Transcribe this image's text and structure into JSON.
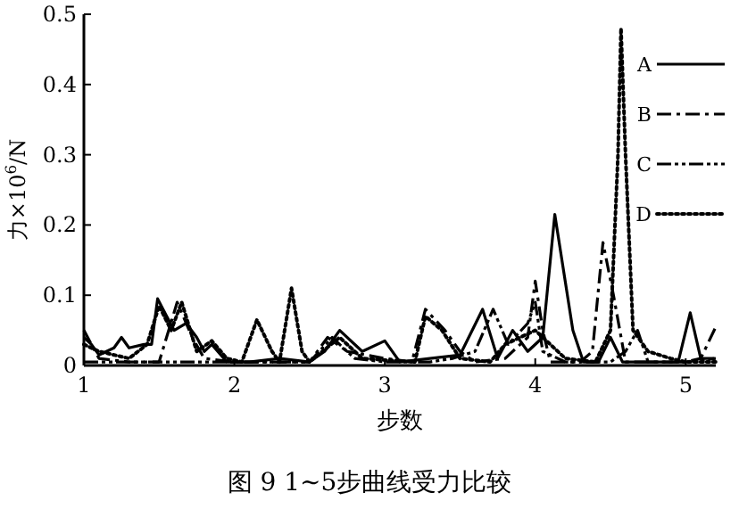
{
  "chart_data": {
    "type": "line",
    "title": "图 9  1~5步曲线受力比较",
    "xlabel": "步数",
    "ylabel": "力×10$^{6}$/N",
    "xlim": [
      1,
      5.2
    ],
    "ylim": [
      0,
      0.5
    ],
    "xticks": [
      1,
      2,
      3,
      4,
      5
    ],
    "yticks": [
      0,
      0.1,
      0.2,
      0.3,
      0.4,
      0.5
    ],
    "legend": "top right",
    "series": [
      {
        "name": "A",
        "color": "#000000",
        "line_style": "solid",
        "x": [
          1,
          1.05,
          1.1,
          1.2,
          1.25,
          1.3,
          1.4,
          1.45,
          1.49,
          1.55,
          1.6,
          1.68,
          1.75,
          1.8,
          1.85,
          1.95,
          2.1,
          2.3,
          2.5,
          2.6,
          2.7,
          2.85,
          3.0,
          3.1,
          3.3,
          3.5,
          3.65,
          3.75,
          3.85,
          3.95,
          4.05,
          4.13,
          4.25,
          4.32,
          4.42,
          4.5,
          4.58,
          4.8,
          4.95,
          5.03,
          5.1,
          5.19
        ],
        "values": [
          0.04,
          0.03,
          0.015,
          0.025,
          0.04,
          0.025,
          0.03,
          0.03,
          0.095,
          0.07,
          0.05,
          0.06,
          0.04,
          0.02,
          0.03,
          0.005,
          0.005,
          0.01,
          0.005,
          0.02,
          0.05,
          0.02,
          0.035,
          0.005,
          0.01,
          0.015,
          0.08,
          0.01,
          0.05,
          0.02,
          0.04,
          0.215,
          0.05,
          0.005,
          0.005,
          0.04,
          0.005,
          0.005,
          0.005,
          0.075,
          0.01,
          0.01
        ]
      },
      {
        "name": "B",
        "color": "#000000",
        "line_style": "dashdot",
        "x": [
          1,
          1.1,
          1.3,
          1.5,
          1.62,
          1.72,
          1.8,
          2.0,
          2.5,
          2.62,
          2.75,
          3.0,
          3.18,
          3.27,
          3.4,
          3.5,
          3.6,
          3.8,
          3.95,
          4.0,
          4.05,
          4.1,
          4.3,
          4.38,
          4.45,
          4.52,
          4.6,
          4.8,
          5.0,
          5.1,
          5.2
        ],
        "values": [
          0.05,
          0.01,
          0.005,
          0.005,
          0.09,
          0.04,
          0.01,
          0.005,
          0.005,
          0.04,
          0.02,
          0.01,
          0.005,
          0.08,
          0.05,
          0.02,
          0.005,
          0.01,
          0.04,
          0.12,
          0.05,
          0.005,
          0.005,
          0.02,
          0.175,
          0.1,
          0.005,
          0.005,
          0.005,
          0.01,
          0.055
        ]
      },
      {
        "name": "C",
        "color": "#000000",
        "line_style": "dashdotdot",
        "x": [
          1,
          1.5,
          2.0,
          2.5,
          2.65,
          2.8,
          3.0,
          3.3,
          3.45,
          3.6,
          3.72,
          3.82,
          3.95,
          4.0,
          4.05,
          4.2,
          4.5,
          4.6,
          4.68,
          4.75,
          5.0,
          5.2
        ],
        "values": [
          0.005,
          0.005,
          0.005,
          0.005,
          0.04,
          0.01,
          0.005,
          0.005,
          0.01,
          0.02,
          0.08,
          0.03,
          0.06,
          0.09,
          0.02,
          0.005,
          0.005,
          0.02,
          0.05,
          0.005,
          0.005,
          0.01
        ]
      },
      {
        "name": "D",
        "color": "#000000",
        "line_style": "dotted",
        "x": [
          1,
          1.1,
          1.3,
          1.42,
          1.5,
          1.58,
          1.65,
          1.75,
          1.85,
          1.95,
          2.05,
          2.15,
          2.25,
          2.3,
          2.38,
          2.45,
          2.5,
          2.7,
          2.85,
          3.2,
          3.27,
          3.38,
          3.5,
          3.7,
          3.8,
          4.0,
          4.2,
          4.4,
          4.5,
          4.55,
          4.57,
          4.6,
          4.65,
          4.75,
          4.9,
          5.0,
          5.2
        ],
        "values": [
          0.03,
          0.02,
          0.01,
          0.03,
          0.085,
          0.05,
          0.09,
          0.02,
          0.035,
          0.01,
          0.005,
          0.065,
          0.02,
          0.005,
          0.11,
          0.02,
          0.005,
          0.04,
          0.01,
          0.005,
          0.07,
          0.05,
          0.01,
          0.005,
          0.03,
          0.05,
          0.01,
          0.005,
          0.05,
          0.3,
          0.48,
          0.3,
          0.05,
          0.02,
          0.01,
          0.005,
          0.005
        ]
      }
    ]
  }
}
